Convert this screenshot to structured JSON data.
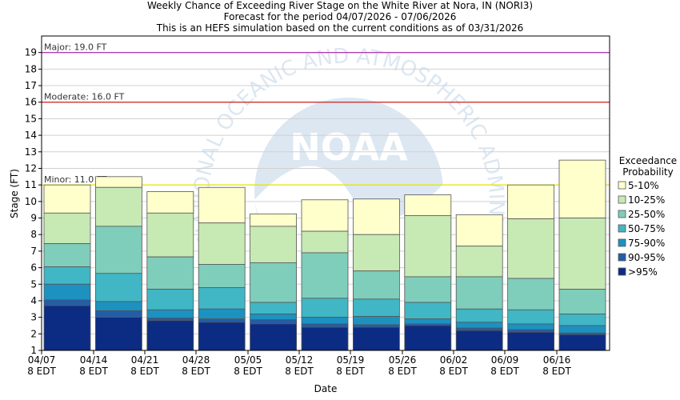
{
  "chart_data": {
    "type": "bar",
    "title": "Weekly Chance of Exceeding River Stage on the White River at Nora, IN (NORI3)",
    "subtitle_1": "Forecast for the period 04/07/2026 - 07/06/2026",
    "subtitle_2": "This is an HEFS simulation based on the current conditions as of 03/31/2026",
    "xlabel": "Date",
    "ylabel": "Stage (FT)",
    "ylim": [
      1,
      20
    ],
    "yticks": [
      1,
      2,
      3,
      4,
      5,
      6,
      7,
      8,
      9,
      10,
      11,
      12,
      13,
      14,
      15,
      16,
      17,
      18,
      19
    ],
    "xticks": [
      {
        "date": "04/07",
        "tz": "8 EDT"
      },
      {
        "date": "04/14",
        "tz": "8 EDT"
      },
      {
        "date": "04/21",
        "tz": "8 EDT"
      },
      {
        "date": "04/28",
        "tz": "8 EDT"
      },
      {
        "date": "05/05",
        "tz": "8 EDT"
      },
      {
        "date": "05/12",
        "tz": "8 EDT"
      },
      {
        "date": "05/19",
        "tz": "8 EDT"
      },
      {
        "date": "05/26",
        "tz": "8 EDT"
      },
      {
        "date": "06/02",
        "tz": "8 EDT"
      },
      {
        "date": "06/09",
        "tz": "8 EDT"
      },
      {
        "date": "06/16",
        "tz": "8 EDT"
      }
    ],
    "thresholds": [
      {
        "label": "Major: 19.0 FT",
        "value": 19.0,
        "color": "#aa22aa"
      },
      {
        "label": "Moderate: 16.0 FT",
        "value": 16.0,
        "color": "#cc2222"
      },
      {
        "label": "Minor: 11.0 FT",
        "value": 11.0,
        "color": "#e6e600"
      }
    ],
    "legend_title": [
      "Exceedance",
      "Probability"
    ],
    "legend": [
      {
        "label": "5-10%",
        "color": "#ffffcc"
      },
      {
        "label": "10-25%",
        "color": "#c7e9b4"
      },
      {
        "label": "25-50%",
        "color": "#7fcdbb"
      },
      {
        "label": "50-75%",
        "color": "#41b6c4"
      },
      {
        "label": "75-90%",
        "color": "#1d91c0"
      },
      {
        "label": "90-95%",
        "color": "#225ea8"
      },
      {
        "label": ">95%",
        "color": "#0c2c84"
      }
    ],
    "weeks": [
      [
        3.7,
        4.05,
        5.0,
        6.05,
        7.45,
        9.3,
        11.0
      ],
      [
        3.0,
        3.4,
        3.95,
        5.65,
        8.5,
        10.85,
        11.5
      ],
      [
        2.8,
        2.95,
        3.45,
        4.7,
        6.65,
        9.3,
        10.6
      ],
      [
        2.7,
        2.9,
        3.5,
        4.8,
        6.2,
        8.7,
        10.85
      ],
      [
        2.6,
        2.85,
        3.2,
        3.9,
        6.3,
        8.5,
        9.25
      ],
      [
        2.4,
        2.6,
        3.0,
        4.15,
        6.9,
        8.2,
        10.1
      ],
      [
        2.4,
        2.55,
        3.05,
        4.1,
        5.8,
        8.0,
        10.15
      ],
      [
        2.5,
        2.6,
        2.9,
        3.9,
        5.45,
        9.15,
        10.4
      ],
      [
        2.2,
        2.35,
        2.7,
        3.5,
        5.45,
        7.3,
        9.2
      ],
      [
        2.1,
        2.25,
        2.6,
        3.45,
        5.35,
        8.95,
        11.0
      ],
      [
        1.95,
        2.05,
        2.5,
        3.2,
        4.7,
        9.0,
        12.5
      ]
    ]
  },
  "watermark": {
    "icon": "nora-logo",
    "logo_text": "NOAA",
    "ring_text": "NATIONAL OCEANIC AND ATMOSPHERIC ADMINISTRATION"
  }
}
